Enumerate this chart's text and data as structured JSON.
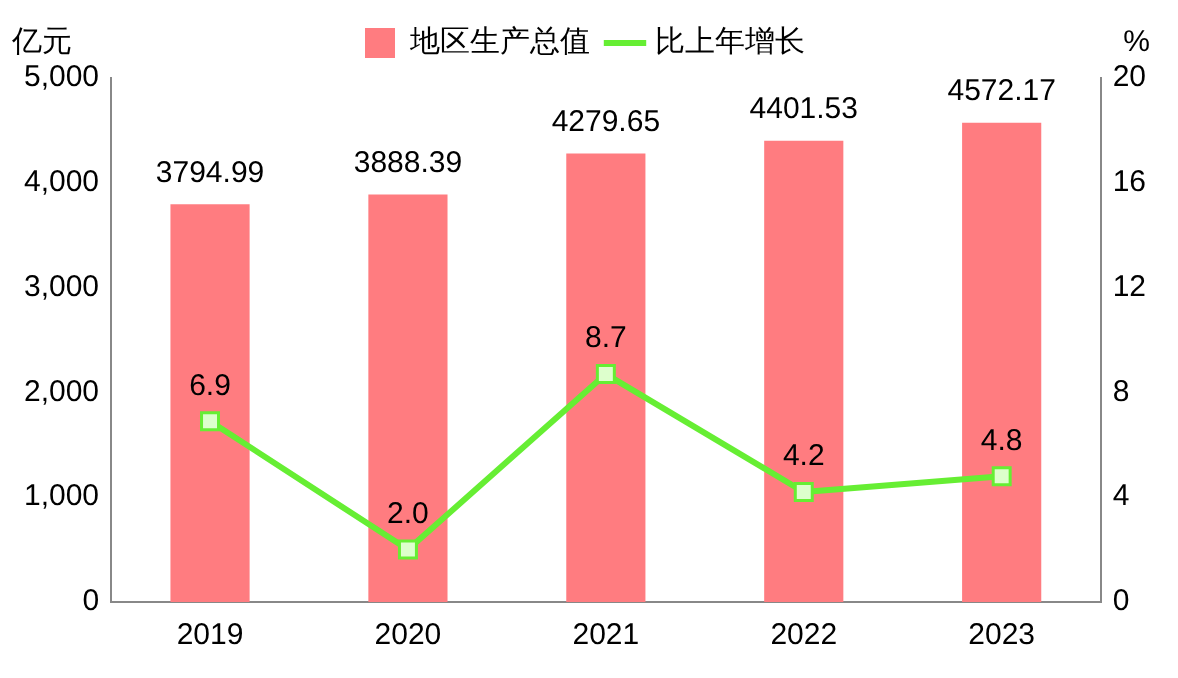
{
  "chart_data": {
    "type": "bar",
    "categories": [
      "2019",
      "2020",
      "2021",
      "2022",
      "2023"
    ],
    "ylabel": "亿元",
    "y2label": "%",
    "series": [
      {
        "name": "地区生产总值",
        "color": "#ff7c80",
        "values": [
          3794.99,
          3888.39,
          4279.65,
          4401.53,
          4572.17
        ]
      },
      {
        "name": "比上年增长",
        "type": "line",
        "axis": "y2",
        "color": "#66ee33",
        "values": [
          6.9,
          2.0,
          8.7,
          4.2,
          4.8
        ],
        "marker": "square",
        "value_labels": [
          "6.9",
          "2.0",
          "8.7",
          "4.2",
          "4.8"
        ]
      }
    ],
    "data_labels": true,
    "ylim": [
      0,
      5000
    ],
    "yticks": [
      0,
      {
        "value": 1000,
        "label": "1,000"
      },
      {
        "value": 2000,
        "label": "2,000"
      },
      {
        "value": 3000,
        "label": "3,000"
      },
      {
        "value": 4000,
        "label": "4,000"
      },
      {
        "value": 5000,
        "label": "5,000"
      }
    ],
    "y2lim": [
      0,
      20
    ],
    "y2ticks": [
      0,
      4,
      8,
      12,
      16,
      20
    ],
    "grid": false,
    "legend": "top"
  }
}
